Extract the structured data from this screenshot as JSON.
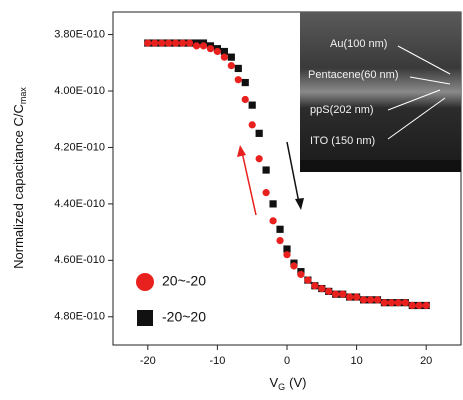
{
  "chart_data": {
    "type": "scatter",
    "y_label": "Normalized capacitance C/C",
    "y_label_sub": "max",
    "x_label": "V",
    "x_label_sub": "G",
    "x_label_unit": "(V)",
    "xlim": [
      -25,
      25
    ],
    "xticks": [
      -20,
      -10,
      0,
      10,
      20
    ],
    "ylim": [
      4.9e-10,
      3.72e-10
    ],
    "yticks": [
      {
        "value": 3.8e-10,
        "label": "3.80E-010"
      },
      {
        "value": 4e-10,
        "label": "4.00E-010"
      },
      {
        "value": 4.2e-10,
        "label": "4.20E-010"
      },
      {
        "value": 4.4e-10,
        "label": "4.40E-010"
      },
      {
        "value": 4.6e-10,
        "label": "4.60E-010"
      },
      {
        "value": 4.8e-10,
        "label": "4.80E-010"
      }
    ],
    "legend": "lower left",
    "x": [
      -20,
      -19,
      -18,
      -17,
      -16,
      -15,
      -14,
      -13,
      -12,
      -11,
      -10,
      -9,
      -8,
      -7,
      -6,
      -5,
      -4,
      -3,
      -2,
      -1,
      0,
      1,
      2,
      3,
      4,
      5,
      6,
      7,
      8,
      9,
      10,
      11,
      12,
      13,
      14,
      15,
      16,
      17,
      18,
      19,
      20
    ],
    "series": [
      {
        "name": "20~-20",
        "color": "#e8211f",
        "marker": "circle",
        "values": [
          3.83e-10,
          3.83e-10,
          3.83e-10,
          3.83e-10,
          3.83e-10,
          3.83e-10,
          3.83e-10,
          3.84e-10,
          3.84e-10,
          3.85e-10,
          3.86e-10,
          3.88e-10,
          3.91e-10,
          3.96e-10,
          4.03e-10,
          4.12e-10,
          4.24e-10,
          4.36e-10,
          4.46e-10,
          4.53e-10,
          4.58e-10,
          4.62e-10,
          4.65e-10,
          4.67e-10,
          4.69e-10,
          4.7e-10,
          4.71e-10,
          4.72e-10,
          4.72e-10,
          4.73e-10,
          4.73e-10,
          4.74e-10,
          4.74e-10,
          4.74e-10,
          4.75e-10,
          4.75e-10,
          4.75e-10,
          4.75e-10,
          4.76e-10,
          4.76e-10,
          4.76e-10
        ]
      },
      {
        "name": "-20~20",
        "color": "#111111",
        "marker": "square",
        "values": [
          3.83e-10,
          3.83e-10,
          3.83e-10,
          3.83e-10,
          3.83e-10,
          3.83e-10,
          3.83e-10,
          3.83e-10,
          3.83e-10,
          3.84e-10,
          3.85e-10,
          3.86e-10,
          3.88e-10,
          3.92e-10,
          3.97e-10,
          4.05e-10,
          4.15e-10,
          4.28e-10,
          4.4e-10,
          4.49e-10,
          4.56e-10,
          4.61e-10,
          4.64e-10,
          4.67e-10,
          4.69e-10,
          4.7e-10,
          4.71e-10,
          4.72e-10,
          4.72e-10,
          4.73e-10,
          4.73e-10,
          4.74e-10,
          4.74e-10,
          4.74e-10,
          4.75e-10,
          4.75e-10,
          4.75e-10,
          4.75e-10,
          4.76e-10,
          4.76e-10,
          4.76e-10
        ]
      }
    ],
    "inset_labels": [
      "Au(100 nm)",
      "Pentacene(60 nm)",
      "ppS(202 nm)",
      "ITO (150 nm)"
    ]
  }
}
